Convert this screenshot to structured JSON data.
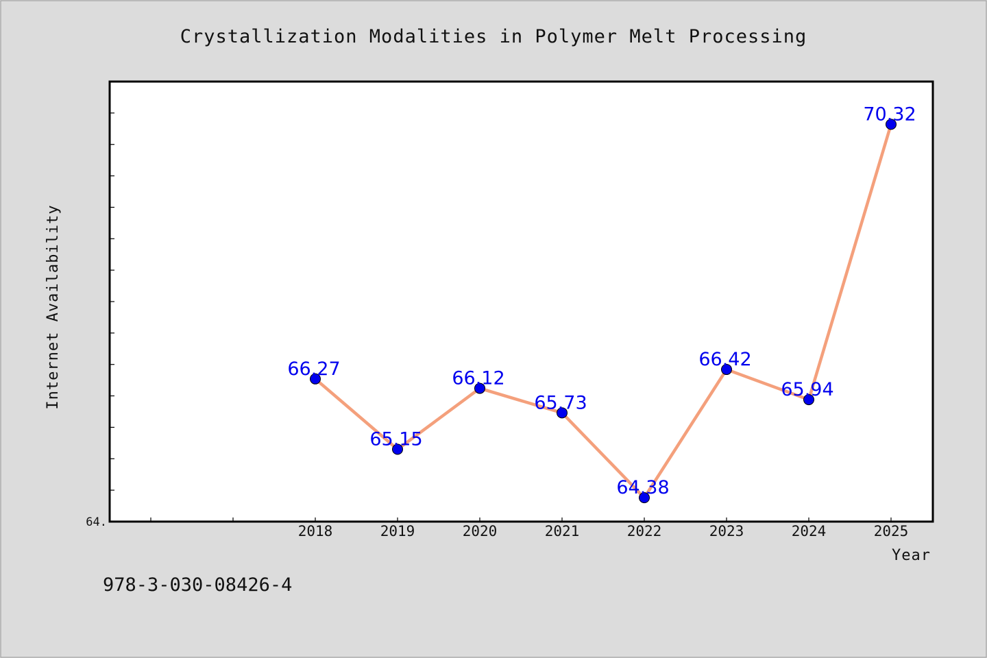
{
  "chart_data": {
    "type": "line",
    "title": "Crystallization Modalities in Polymer Melt Processing",
    "xlabel": "Year",
    "ylabel": "Internet Availability",
    "categories": [
      "2018",
      "2019",
      "2020",
      "2021",
      "2022",
      "2023",
      "2024",
      "2025"
    ],
    "values": [
      66.27,
      65.15,
      66.12,
      65.73,
      64.38,
      66.42,
      65.94,
      70.32
    ],
    "data_labels": [
      "66.27",
      "65.15",
      "66.12",
      "65.73",
      "64.38",
      "66.42",
      "65.94",
      "70.32"
    ],
    "ylim": [
      64.0,
      71.0
    ],
    "ytick_label": "64.",
    "grid": false,
    "line_color": "#f4a07c",
    "marker_color": "#0000ee",
    "label_color": "#0000ee"
  },
  "footer": {
    "isbn": "978-3-030-08426-4"
  }
}
